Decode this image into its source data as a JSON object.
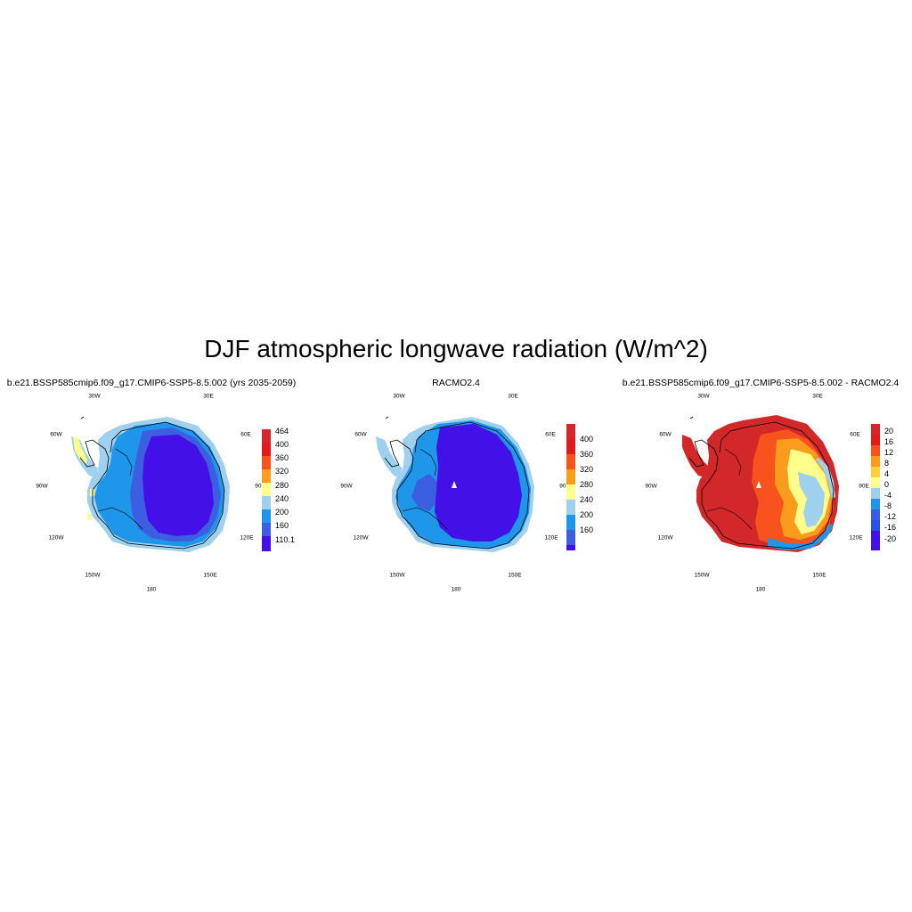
{
  "title": "DJF atmospheric longwave radiation (W/m^2)",
  "colors": {
    "c1": "#4410e8",
    "c2": "#3c5ee0",
    "c3": "#1e96ea",
    "c4": "#9fd0ee",
    "c5": "#ffff8c",
    "c6": "#fcd13a",
    "c7": "#fb9c1c",
    "c8": "#f8531c",
    "c9": "#e21a1a",
    "c10": "#d2282a",
    "lightc3": "#a8d4f0"
  },
  "lon_labels": {
    "l30w": "30W",
    "l30e": "30E",
    "l60w": "60W",
    "l60e": "60E",
    "l90w": "90W",
    "l90e": "90E",
    "l120w": "120W",
    "l120e": "120E",
    "l150w": "150W",
    "l150e": "150E",
    "l180": "180"
  },
  "panels": [
    {
      "title": "b.e21.BSSP585cmip6.f09_g17.CMIP6-SSP5-8.5.002 (yrs 2035-2059)",
      "colorbar": {
        "labels": [
          "464",
          "400",
          "360",
          "320",
          "280",
          "240",
          "200",
          "160",
          "110.1"
        ],
        "colors": [
          "#d2282a",
          "#e21a1a",
          "#f8531c",
          "#fb9c1c",
          "#fcd13a",
          "#9fd0ee",
          "#1e96ea",
          "#3c5ee0",
          "#4410e8"
        ]
      }
    },
    {
      "title": "RACMO2.4",
      "colorbar": {
        "labels": [
          "400",
          "360",
          "320",
          "280",
          "240",
          "200",
          "160"
        ],
        "colors": [
          "#d2282a",
          "#e21a1a",
          "#f8531c",
          "#fb9c1c",
          "#fcd13a",
          "#9fd0ee",
          "#1e96ea",
          "#3c5ee0",
          "#4410e8"
        ]
      }
    },
    {
      "title": "b.e21.BSSP585cmip6.f09_g17.CMIP6-SSP5-8.5.002 - RACMO2.4",
      "colorbar": {
        "labels": [
          "20",
          "16",
          "12",
          "8",
          "4",
          "0",
          "-4",
          "-8",
          "-12",
          "-16",
          "-20"
        ],
        "colors": [
          "#d2282a",
          "#e21a1a",
          "#f8531c",
          "#fb9c1c",
          "#fcd13a",
          "#ffff8c",
          "#9fd0ee",
          "#1e96ea",
          "#3c5ee0",
          "#2a4ee8",
          "#4410e8",
          "#4410e8"
        ]
      }
    }
  ]
}
